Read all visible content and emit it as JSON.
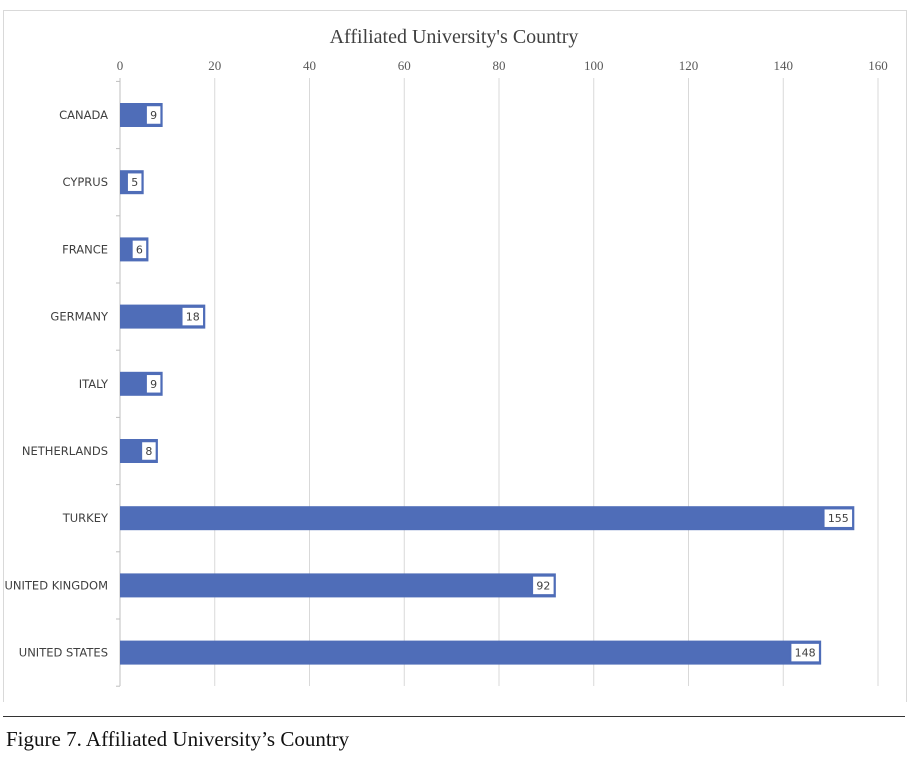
{
  "caption": "Figure 7. Affiliated University’s Country",
  "colors": {
    "bar": "#4f6db8",
    "grid": "#d9d9d9",
    "axis": "#bfbfbf",
    "label_border": "#4f6db8"
  },
  "chart_data": {
    "type": "bar",
    "orientation": "horizontal",
    "title": "Affiliated University's Country",
    "xlabel": "",
    "ylabel": "",
    "xlim": [
      0,
      160
    ],
    "x_ticks": [
      0,
      20,
      40,
      60,
      80,
      100,
      120,
      140,
      160
    ],
    "x_axis_position": "top",
    "grid": true,
    "categories": [
      "CANADA",
      "CYPRUS",
      "FRANCE",
      "GERMANY",
      "ITALY",
      "NETHERLANDS",
      "TURKEY",
      "UNITED KINGDOM",
      "UNITED STATES"
    ],
    "values": [
      9,
      5,
      6,
      18,
      9,
      8,
      155,
      92,
      148
    ],
    "data_labels": [
      "9",
      "5",
      "6",
      "18",
      "9",
      "8",
      "155",
      "92",
      "148"
    ]
  }
}
